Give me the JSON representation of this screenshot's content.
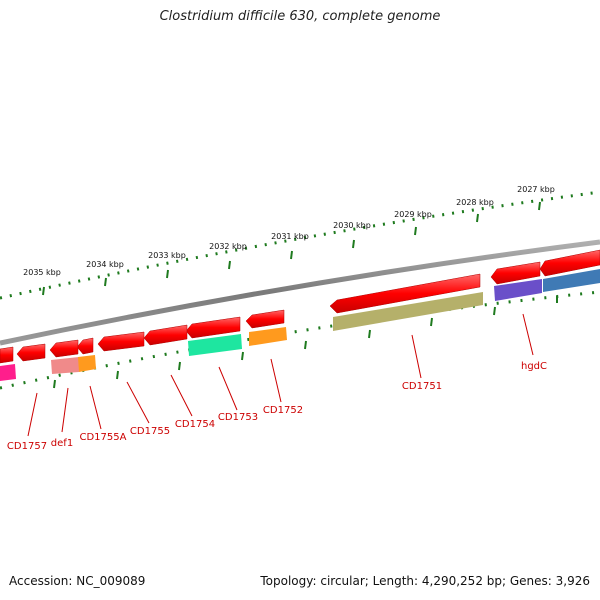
{
  "title": "Clostridium difficile 630, complete genome",
  "footer": {
    "accession": "Accession: NC_009089",
    "summary": "Topology: circular; Length: 4,290,252 bp; Genes: 3,926"
  },
  "ticks": {
    "labels": [
      "2027 kbp",
      "2028 kbp",
      "2029 kbp",
      "2030 kbp",
      "2031 kbp",
      "2032 kbp",
      "2033 kbp",
      "2034 kbp",
      "2035 kbp"
    ]
  },
  "genes": {
    "labels": [
      "hgdC",
      "CD1751",
      "CD1752",
      "CD1753",
      "CD1754",
      "CD1755",
      "CD1755A",
      "def1",
      "CD1757"
    ]
  },
  "colors": {
    "backbone": "#8a8a8a",
    "gene_arrow": "#ff0000",
    "tick_dot": "#1e7a1e",
    "label": "#cc0000",
    "cd1751_domain": "#b5b06a",
    "hgdc_domain": "#6a4fc9",
    "hgdc_domain_2": "#3f7ab5",
    "cd1753_domain": "#1ee6a0",
    "cd1752_domain": "#ff9a1e",
    "def1_domain": "#f08a8a",
    "cd1757_domain": "#ff1e8c"
  }
}
